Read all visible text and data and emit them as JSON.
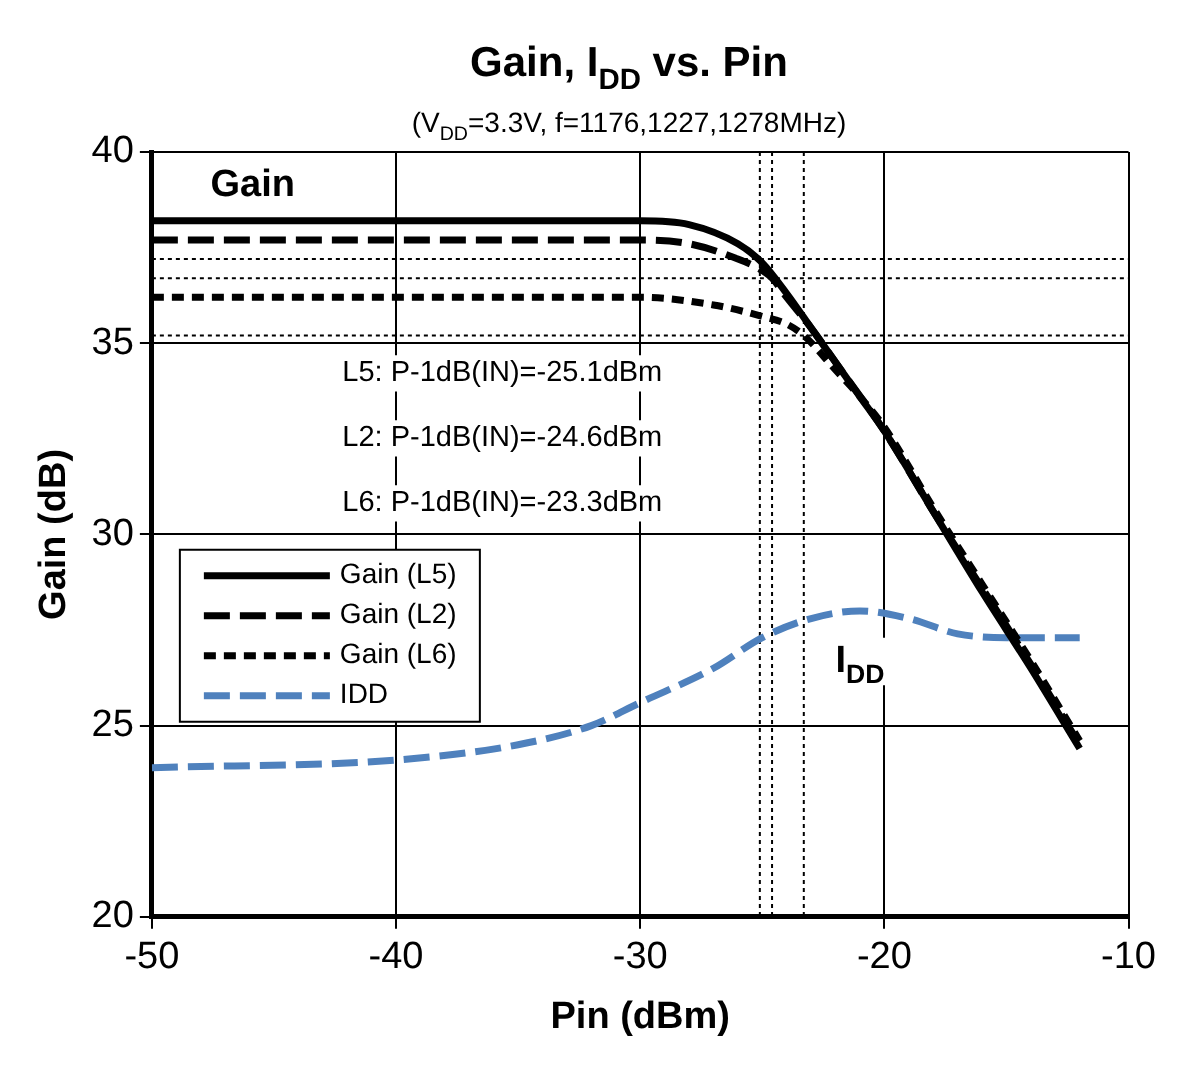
{
  "chart_data": {
    "type": "line",
    "title": "Gain, I$_{DD}$ vs. Pin",
    "subtitle": "(V$_{DD}$=3.3V, f=1176,1227,1278MHz)",
    "xlabel": "Pin (dBm)",
    "ylabel": "Gain (dB)",
    "xlim": [
      -50,
      -10
    ],
    "xticks": [
      -50,
      -40,
      -30,
      -20,
      -10
    ],
    "ylim": [
      20,
      40
    ],
    "yticks": [
      20,
      25,
      30,
      35,
      40
    ],
    "grid": true,
    "legend": "left",
    "marker": "none",
    "series": [
      {
        "name": "Gain (L5)",
        "color": "#000000",
        "line_style": "solid",
        "x": [
          -50,
          -40,
          -30,
          -28,
          -26,
          -25,
          -24,
          -23,
          -22,
          -21,
          -20,
          -18,
          -16,
          -14,
          -12
        ],
        "values": [
          38.2,
          38.2,
          38.2,
          38.1,
          37.6,
          37.1,
          36.3,
          35.4,
          34.5,
          33.6,
          32.7,
          30.6,
          28.5,
          26.5,
          24.4
        ]
      },
      {
        "name": "Gain (L2)",
        "color": "#000000",
        "line_style": "dashed",
        "x": [
          -50,
          -40,
          -30,
          -28,
          -26,
          -25,
          -24.6,
          -24,
          -23,
          -22,
          -20,
          -18,
          -16,
          -14,
          -12
        ],
        "values": [
          37.7,
          37.7,
          37.7,
          37.6,
          37.2,
          36.9,
          36.7,
          36.2,
          35.4,
          34.5,
          32.7,
          30.6,
          28.6,
          26.6,
          24.5
        ]
      },
      {
        "name": "Gain (L6)",
        "color": "#000000",
        "line_style": "dotted",
        "x": [
          -50,
          -40,
          -30,
          -27,
          -25,
          -24,
          -23.3,
          -22,
          -21,
          -20,
          -18,
          -16,
          -14,
          -12
        ],
        "values": [
          36.2,
          36.2,
          36.2,
          36.0,
          35.7,
          35.5,
          35.2,
          34.3,
          33.6,
          32.8,
          30.7,
          28.7,
          26.7,
          24.6
        ]
      },
      {
        "name": "IDD",
        "color": "#4f81bd",
        "line_style": "dashed",
        "x": [
          -50,
          -40,
          -35,
          -32,
          -30,
          -27,
          -25,
          -23,
          -21,
          -19,
          -17,
          -15,
          -12
        ],
        "values": [
          23.9,
          24.1,
          24.5,
          25.0,
          25.6,
          26.5,
          27.3,
          27.8,
          28.0,
          27.8,
          27.4,
          27.3,
          27.3
        ]
      }
    ],
    "ref_lines": [
      {
        "axis": "y",
        "value": 37.2,
        "color": "#000000",
        "line_style": "dotted"
      },
      {
        "axis": "y",
        "value": 36.7,
        "color": "#000000",
        "line_style": "dotted"
      },
      {
        "axis": "y",
        "value": 35.2,
        "color": "#000000",
        "line_style": "dotted"
      },
      {
        "axis": "x",
        "value": -25.1,
        "color": "#000000",
        "line_style": "dotted"
      },
      {
        "axis": "x",
        "value": -24.6,
        "color": "#000000",
        "line_style": "dotted"
      },
      {
        "axis": "x",
        "value": -23.3,
        "color": "#000000",
        "line_style": "dotted"
      }
    ],
    "annotations": [
      "Gain",
      "I$_{DD}$",
      "L5: P-1dB(IN)=-25.1dBm",
      "L2: P-1dB(IN)=-24.6dBm",
      "L6: P-1dB(IN)=-23.3dBm"
    ]
  }
}
